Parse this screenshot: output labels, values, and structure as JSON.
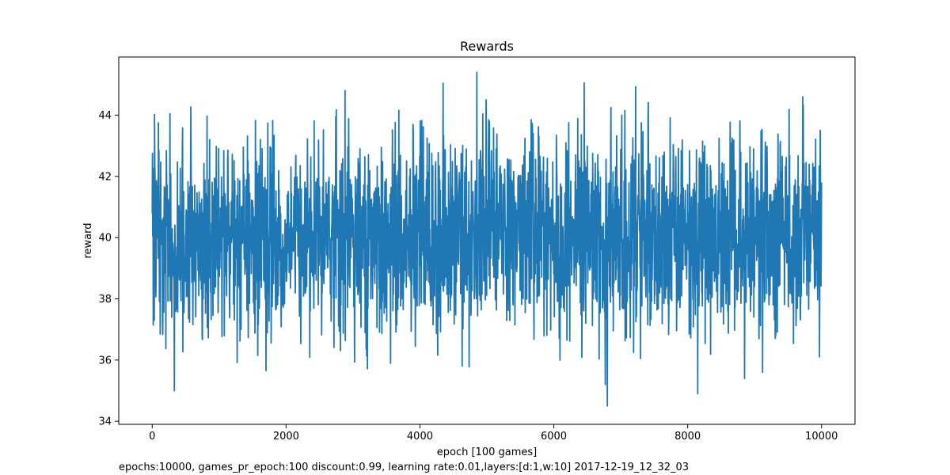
{
  "chart_data": {
    "type": "line",
    "title": "Rewards",
    "xlabel": "epoch [100 games]",
    "ylabel": "reward",
    "caption": "epochs:10000, games_pr_epoch:100 discount:0.99, learning rate:0.01,layers:[d:1,w:10] 2017-12-19_12_32_03",
    "xlim": [
      -500,
      10500
    ],
    "ylim": [
      33.9,
      45.9
    ],
    "xticks": [
      0,
      2000,
      4000,
      6000,
      8000,
      10000
    ],
    "yticks": [
      34,
      36,
      38,
      40,
      42,
      44
    ],
    "grid": false,
    "series_color": "#1f77b4",
    "series": [
      {
        "x_start": 0,
        "x_end": 10000,
        "mean": 40.1,
        "band_low": 38.1,
        "band_high": 42.2,
        "min": 34.5,
        "max": 45.4,
        "notable_points": [
          {
            "x": 0,
            "y": 40.8
          },
          {
            "x": 30,
            "y": 37.3
          },
          {
            "x": 330,
            "y": 35.0
          },
          {
            "x": 2880,
            "y": 44.8
          },
          {
            "x": 4850,
            "y": 45.4
          },
          {
            "x": 4630,
            "y": 35.8
          },
          {
            "x": 6770,
            "y": 35.2
          },
          {
            "x": 6800,
            "y": 34.5
          },
          {
            "x": 8150,
            "y": 34.9
          },
          {
            "x": 8850,
            "y": 35.4
          },
          {
            "x": 9120,
            "y": 35.6
          },
          {
            "x": 9720,
            "y": 44.6
          },
          {
            "x": 10000,
            "y": 41.8
          }
        ]
      }
    ]
  }
}
